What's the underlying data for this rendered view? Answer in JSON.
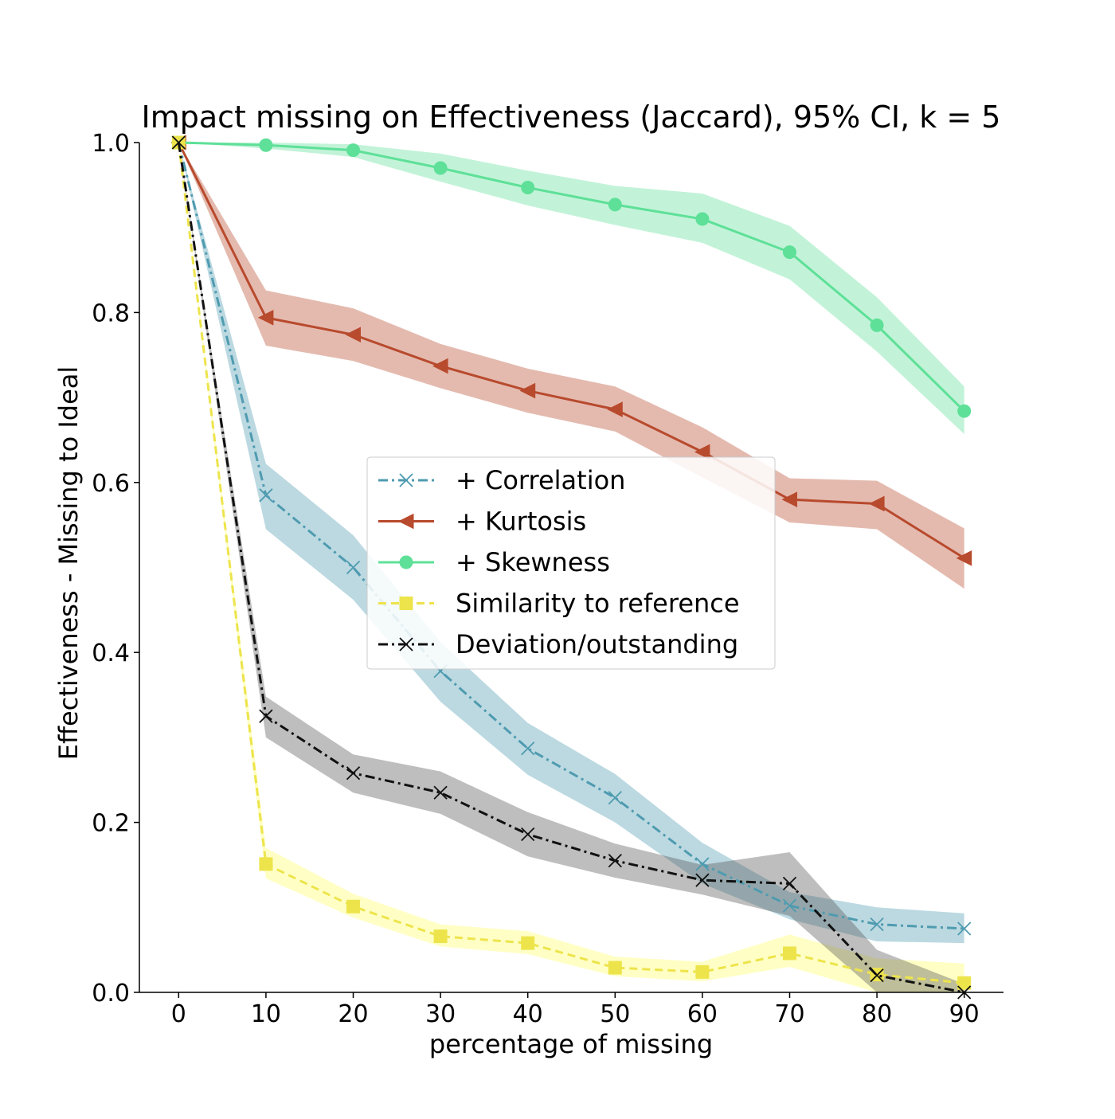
{
  "chart_data": {
    "type": "line",
    "title": "Impact missing on Effectiveness (Jaccard), 95% CI, k = 5",
    "xlabel": "percentage of missing",
    "ylabel": "Effectiveness - Missing to Ideal",
    "x": [
      0,
      10,
      20,
      30,
      40,
      50,
      60,
      70,
      80,
      90
    ],
    "xticks": [
      "0",
      "10",
      "20",
      "30",
      "40",
      "50",
      "60",
      "70",
      "80",
      "90"
    ],
    "yticks": [
      "0.0",
      "0.2",
      "0.4",
      "0.6",
      "0.8",
      "1.0"
    ],
    "ylim": [
      0.0,
      1.0
    ],
    "xlim": [
      -4.5,
      94.5
    ],
    "grid": false,
    "legend_position": "center",
    "series": [
      {
        "name": "+ Correlation",
        "color": "#4f9bb0",
        "marker": "x",
        "linestyle": "dashdot",
        "values": [
          1.0,
          0.585,
          0.5,
          0.378,
          0.287,
          0.229,
          0.151,
          0.102,
          0.08,
          0.075
        ],
        "ci_low": [
          1.0,
          0.545,
          0.462,
          0.342,
          0.256,
          0.2,
          0.128,
          0.086,
          0.06,
          0.058
        ],
        "ci_high": [
          1.0,
          0.622,
          0.538,
          0.412,
          0.317,
          0.257,
          0.176,
          0.118,
          0.1,
          0.093
        ]
      },
      {
        "name": "+ Kurtosis",
        "color": "#b84a2d",
        "marker": "triangle-left",
        "linestyle": "solid",
        "values": [
          1.0,
          0.794,
          0.774,
          0.737,
          0.708,
          0.686,
          0.636,
          0.58,
          0.575,
          0.511
        ],
        "ci_low": [
          1.0,
          0.761,
          0.743,
          0.711,
          0.682,
          0.66,
          0.606,
          0.553,
          0.545,
          0.475
        ],
        "ci_high": [
          1.0,
          0.826,
          0.805,
          0.763,
          0.734,
          0.713,
          0.665,
          0.605,
          0.602,
          0.546
        ]
      },
      {
        "name": "+ Skewness",
        "color": "#5ee098",
        "marker": "circle",
        "linestyle": "solid",
        "values": [
          1.0,
          0.997,
          0.991,
          0.97,
          0.947,
          0.927,
          0.91,
          0.871,
          0.785,
          0.684
        ],
        "ci_low": [
          1.0,
          0.993,
          0.983,
          0.954,
          0.926,
          0.903,
          0.882,
          0.839,
          0.754,
          0.657
        ],
        "ci_high": [
          1.0,
          1.0,
          0.998,
          0.987,
          0.967,
          0.949,
          0.94,
          0.902,
          0.818,
          0.713
        ]
      },
      {
        "name": "Similarity to reference",
        "color": "#ede44c",
        "band_color": "#ffff66",
        "marker": "square",
        "linestyle": "dashed",
        "values": [
          1.0,
          0.151,
          0.101,
          0.066,
          0.058,
          0.029,
          0.024,
          0.046,
          0.021,
          0.011
        ],
        "ci_low": [
          1.0,
          0.134,
          0.088,
          0.054,
          0.045,
          0.019,
          0.013,
          0.03,
          0.0,
          0.0
        ],
        "ci_high": [
          1.0,
          0.17,
          0.116,
          0.08,
          0.072,
          0.042,
          0.036,
          0.068,
          0.04,
          0.034
        ]
      },
      {
        "name": "Deviation/outstanding",
        "color": "#111111",
        "band_color": "#555555",
        "marker": "x",
        "linestyle": "dashdot",
        "values": [
          1.0,
          0.325,
          0.258,
          0.235,
          0.186,
          0.155,
          0.132,
          0.128,
          0.02,
          0.0
        ],
        "ci_low": [
          1.0,
          0.3,
          0.235,
          0.21,
          0.16,
          0.135,
          0.115,
          0.09,
          0.0,
          0.0
        ],
        "ci_high": [
          1.0,
          0.348,
          0.28,
          0.26,
          0.212,
          0.175,
          0.15,
          0.165,
          0.05,
          0.01
        ]
      }
    ]
  }
}
